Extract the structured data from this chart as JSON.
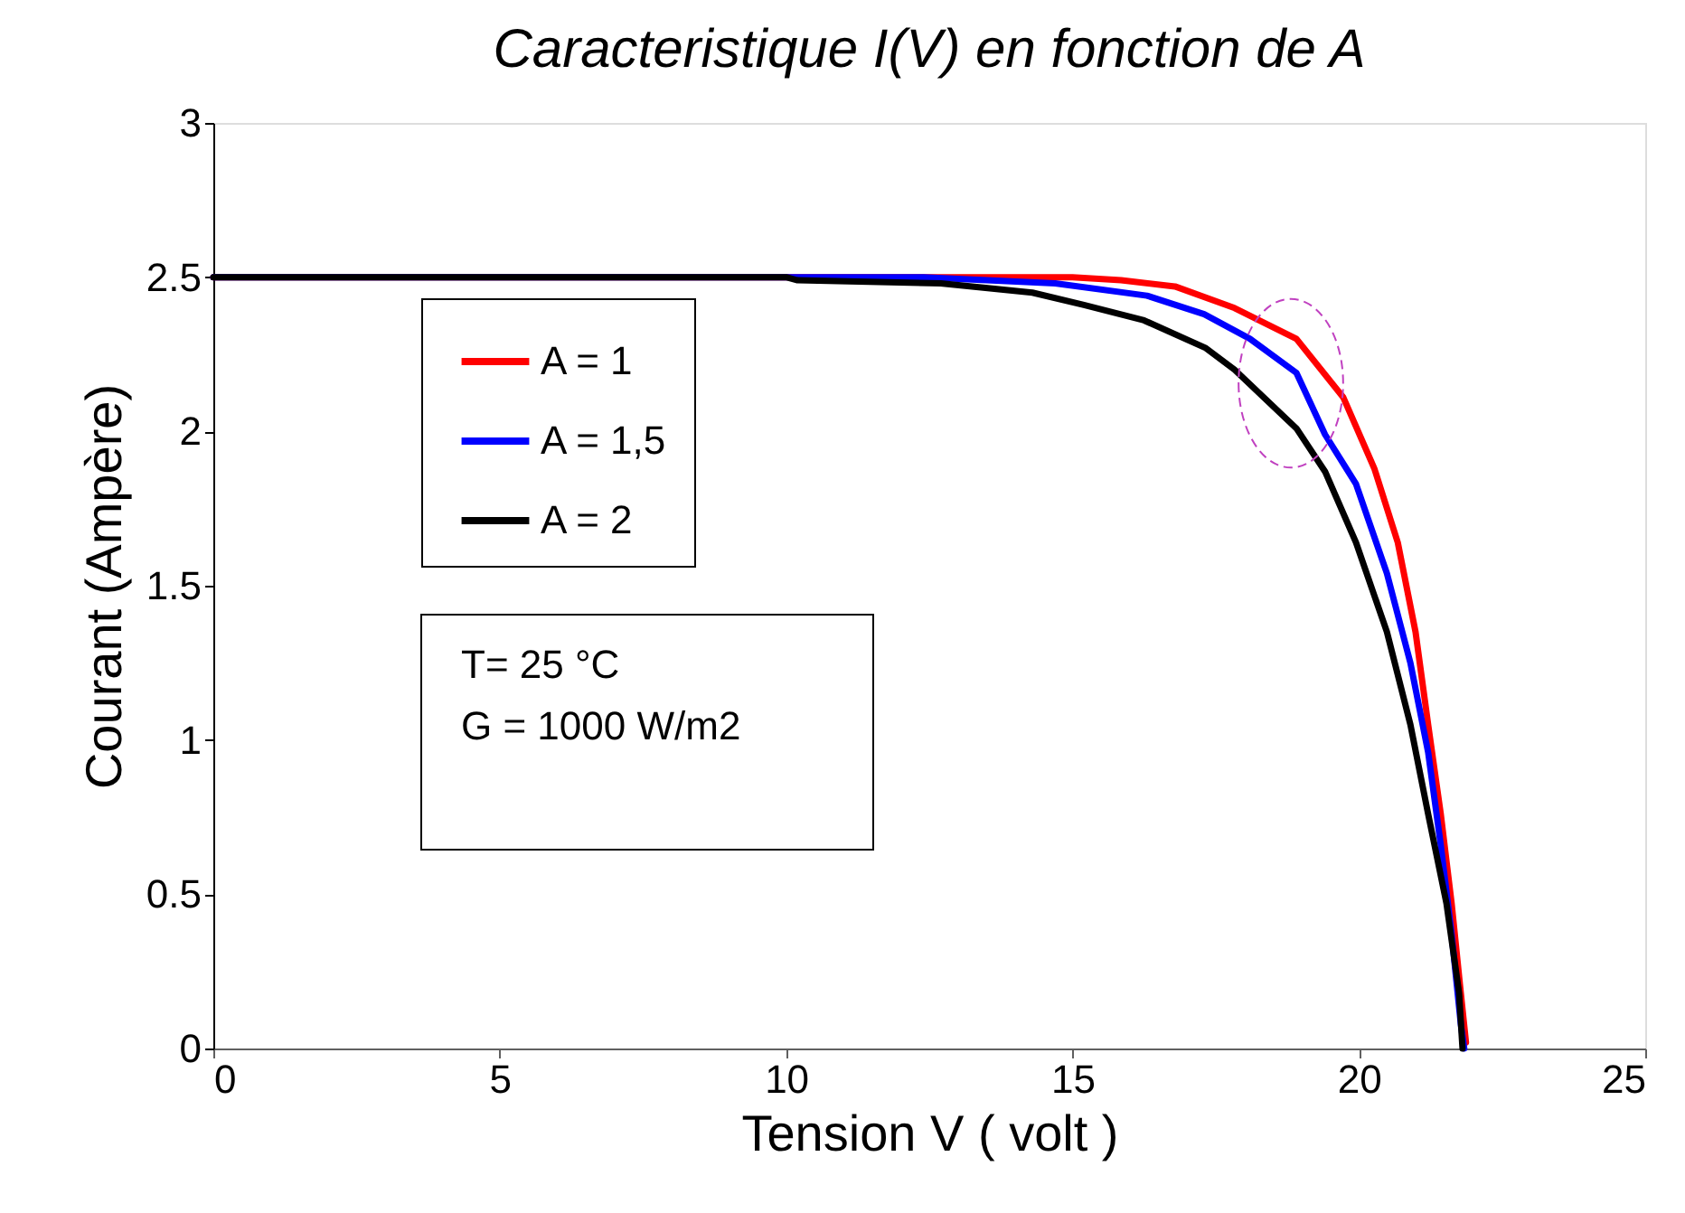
{
  "chart_data": {
    "type": "line",
    "title": "Caracteristique I(V) en fonction de A",
    "xlabel": "Tension V ( volt )",
    "ylabel": "Courant (Ampère)",
    "xlim": [
      0,
      25
    ],
    "xticks": [
      0,
      5,
      10,
      15,
      20,
      25
    ],
    "ylim": [
      0,
      3
    ],
    "yticks": [
      0,
      0.5,
      1,
      1.5,
      2,
      2.5,
      3
    ],
    "grid": false,
    "legend": "top left",
    "marker": "none",
    "line_style": "solid",
    "annotations": [
      "T= 25 °C",
      "G = 1000 W/m2"
    ],
    "series": [
      {
        "name": "A = 1",
        "color": "#ff0000",
        "x": [
          0,
          15.0,
          15.85,
          16.79,
          17.83,
          18.91,
          19.73,
          20.27,
          20.68,
          20.99,
          21.21,
          21.43,
          21.62,
          21.78,
          21.87
        ],
        "values": [
          2.5,
          2.5,
          2.49,
          2.47,
          2.4,
          2.3,
          2.11,
          1.88,
          1.64,
          1.35,
          1.05,
          0.76,
          0.47,
          0.18,
          0.02
        ]
      },
      {
        "name": "A = 1,5",
        "color": "#0000ff",
        "x": [
          0,
          12.4,
          14.7,
          16.3,
          17.3,
          18.1,
          18.91,
          19.41,
          19.95,
          20.49,
          20.9,
          21.21,
          21.43,
          21.62,
          21.78,
          21.84
        ],
        "values": [
          2.5,
          2.5,
          2.48,
          2.44,
          2.38,
          2.3,
          2.19,
          1.99,
          1.83,
          1.54,
          1.25,
          0.96,
          0.66,
          0.37,
          0.08,
          0.0
        ]
      },
      {
        "name": "A = 2",
        "color": "#000000",
        "x": [
          0,
          10.0,
          10.2,
          12.7,
          14.3,
          15.2,
          16.25,
          17.33,
          17.83,
          18.91,
          19.41,
          19.95,
          20.49,
          20.9,
          21.21,
          21.53,
          21.75,
          21.81
        ],
        "values": [
          2.5,
          2.5,
          2.49,
          2.48,
          2.45,
          2.41,
          2.36,
          2.27,
          2.2,
          2.01,
          1.87,
          1.64,
          1.35,
          1.05,
          0.76,
          0.47,
          0.18,
          0.0
        ]
      }
    ]
  }
}
